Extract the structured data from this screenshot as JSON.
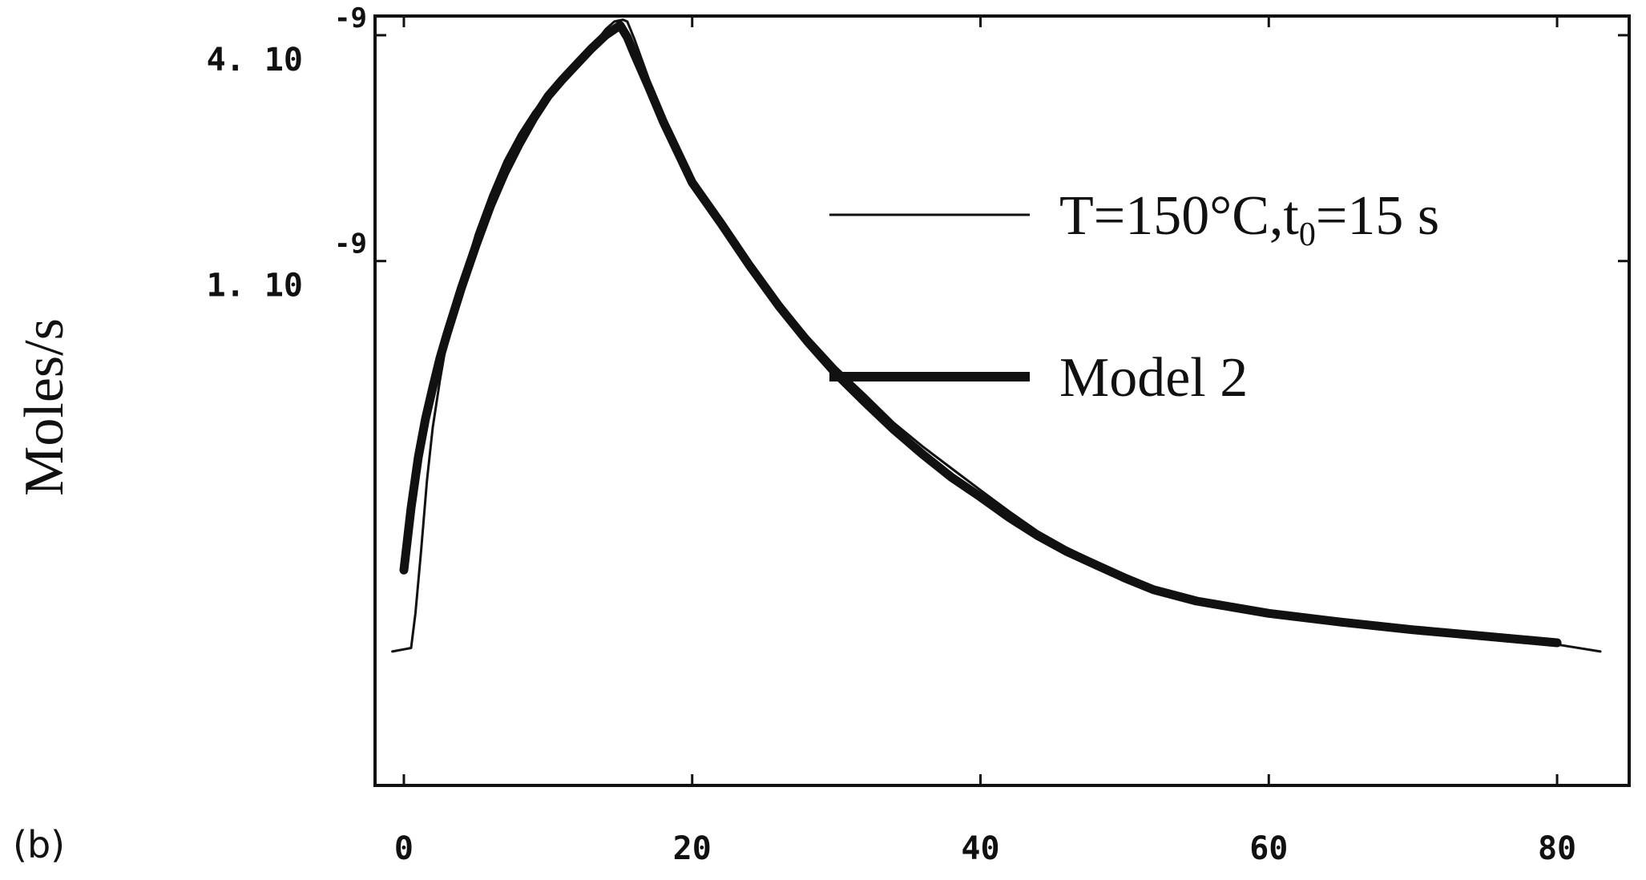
{
  "panel_label": "(b)",
  "chart_data": {
    "type": "line",
    "title": "",
    "xlabel": "",
    "ylabel": "Moles/s",
    "xlim": [
      -2,
      85
    ],
    "ylim": [
      4e-11,
      4.5e-09
    ],
    "xticks": [
      0,
      20,
      40,
      60,
      80
    ],
    "yticks": [
      {
        "value": 4e-09,
        "mantissa": "4.",
        "base": "10",
        "exponent": "-9"
      },
      {
        "value": 1e-09,
        "mantissa": "1.",
        "base": "10",
        "exponent": "-9"
      }
    ],
    "yscale": "log",
    "grid": false,
    "legend_position": "top-right",
    "series": [
      {
        "name": "T=150°C,t",
        "name_subscript": "0",
        "name_suffix": "=15 s",
        "style": "thin",
        "color": "#111111",
        "x": [
          -0.8,
          0.5,
          0.8,
          1.2,
          1.6,
          2,
          2.5,
          3,
          4,
          5,
          6,
          7,
          8,
          9,
          10,
          11,
          12,
          13,
          14,
          14.6,
          15.2,
          15.5,
          16,
          17,
          18,
          19,
          20,
          22,
          24,
          26,
          28,
          30,
          32,
          34,
          36,
          38,
          40,
          42,
          44,
          46,
          48,
          50,
          52,
          55,
          60,
          65,
          70,
          75,
          80,
          83
        ],
        "y": [
          9.1e-11,
          9.3e-11,
          1.15e-10,
          1.7e-10,
          2.6e-10,
          3.6e-10,
          4.8e-10,
          6.2e-10,
          8.7e-10,
          1.18e-09,
          1.5e-09,
          1.85e-09,
          2.18e-09,
          2.5e-09,
          2.8e-09,
          3.1e-09,
          3.35e-09,
          3.7e-09,
          4.15e-09,
          4.35e-09,
          4.4e-09,
          4.35e-09,
          3.9e-09,
          3.05e-09,
          2.4e-09,
          1.95e-09,
          1.65e-09,
          1.28e-09,
          9.8e-10,
          7.8e-10,
          6.3e-10,
          5.2e-10,
          4.4e-10,
          3.7e-10,
          3.2e-10,
          2.8e-10,
          2.45e-10,
          2.15e-10,
          1.9e-10,
          1.72e-10,
          1.58e-10,
          1.46e-10,
          1.35e-10,
          1.26e-10,
          1.17e-10,
          1.1e-10,
          1.05e-10,
          1e-10,
          9.5e-11,
          9.1e-11
        ]
      },
      {
        "name": "Model 2",
        "style": "thick",
        "color": "#111111",
        "x": [
          0,
          0.5,
          1,
          1.5,
          2,
          2.5,
          3,
          4,
          5,
          6,
          7,
          8,
          9,
          10,
          11,
          12,
          13,
          14,
          15,
          15.5,
          16,
          17,
          18,
          19,
          20,
          22,
          24,
          26,
          28,
          30,
          32,
          34,
          36,
          38,
          40,
          42,
          44,
          46,
          48,
          50,
          52,
          55,
          60,
          65,
          70,
          75,
          80
        ],
        "y": [
          1.5e-10,
          2.2e-10,
          3e-10,
          3.8e-10,
          4.6e-10,
          5.5e-10,
          6.4e-10,
          8.5e-10,
          1.1e-09,
          1.4e-09,
          1.72e-09,
          2.05e-09,
          2.4e-09,
          2.75e-09,
          3.05e-09,
          3.35e-09,
          3.68e-09,
          4e-09,
          4.25e-09,
          3.95e-09,
          3.55e-09,
          2.9e-09,
          2.35e-09,
          1.95e-09,
          1.62e-09,
          1.26e-09,
          9.7e-10,
          7.6e-10,
          6.1e-10,
          5e-10,
          4.2e-10,
          3.55e-10,
          3.05e-10,
          2.65e-10,
          2.35e-10,
          2.07e-10,
          1.85e-10,
          1.68e-10,
          1.55e-10,
          1.43e-10,
          1.33e-10,
          1.24e-10,
          1.15e-10,
          1.09e-10,
          1.04e-10,
          1e-10,
          9.6e-11
        ]
      }
    ]
  }
}
